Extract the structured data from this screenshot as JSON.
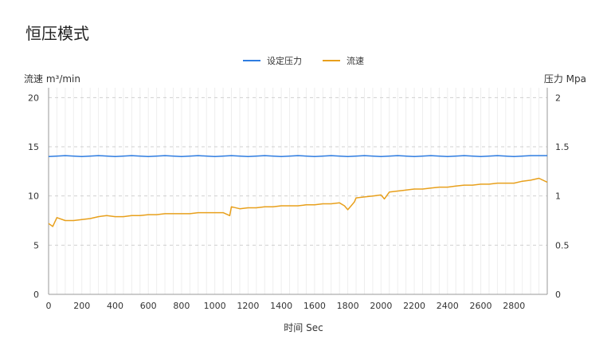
{
  "page": {
    "title": "恒压模式"
  },
  "colors": {
    "pressure": "#2f7de1",
    "flow": "#e8a01c",
    "grid_vertical": "#eeeeee",
    "grid_dashed": "#d0d0d0",
    "axis": "#9a9a9a"
  },
  "chart_data": {
    "type": "line",
    "xlabel": "时间 Sec",
    "ylabel_left": "流速 m³/min",
    "ylabel_right": "压力 Mpa",
    "xlim": [
      0,
      3000
    ],
    "ylim_left": [
      0,
      21
    ],
    "ylim_right": [
      0,
      2.1
    ],
    "x_ticks": [
      0,
      200,
      400,
      600,
      800,
      1000,
      1200,
      1400,
      1600,
      1800,
      2000,
      2200,
      2400,
      2600,
      2800
    ],
    "x_tick_labels": [
      "0",
      "200",
      "400",
      "600",
      "800",
      "1000",
      "1200",
      "1400",
      "1600",
      "1800",
      "2000",
      "2200",
      "2400",
      "2600",
      "2800"
    ],
    "y_left_ticks": [
      0,
      5,
      10,
      15,
      20
    ],
    "y_left_tick_labels": [
      "0",
      "5",
      "10",
      "15",
      "20"
    ],
    "y_right_ticks": [
      0,
      0.5,
      1,
      1.5,
      2
    ],
    "y_right_tick_labels": [
      "0",
      "0.5",
      "1",
      "1.5",
      "2"
    ],
    "grid": true,
    "legend_position": "top-center",
    "series": [
      {
        "name": "设定压力",
        "axis": "right",
        "color": "#2f7de1",
        "x": [
          0,
          100,
          200,
          300,
          400,
          500,
          600,
          700,
          800,
          900,
          1000,
          1100,
          1200,
          1300,
          1400,
          1500,
          1600,
          1700,
          1800,
          1900,
          2000,
          2100,
          2200,
          2300,
          2400,
          2500,
          2600,
          2700,
          2800,
          2900,
          3000
        ],
        "y": [
          1.4,
          1.41,
          1.4,
          1.41,
          1.4,
          1.41,
          1.4,
          1.41,
          1.4,
          1.41,
          1.4,
          1.41,
          1.4,
          1.41,
          1.4,
          1.41,
          1.4,
          1.41,
          1.4,
          1.41,
          1.4,
          1.41,
          1.4,
          1.41,
          1.4,
          1.41,
          1.4,
          1.41,
          1.4,
          1.41,
          1.41
        ]
      },
      {
        "name": "流速",
        "axis": "left",
        "color": "#e8a01c",
        "x": [
          0,
          25,
          50,
          100,
          150,
          200,
          250,
          300,
          350,
          400,
          450,
          500,
          550,
          600,
          650,
          700,
          750,
          800,
          850,
          900,
          950,
          1000,
          1050,
          1090,
          1100,
          1150,
          1200,
          1250,
          1300,
          1350,
          1400,
          1450,
          1500,
          1550,
          1600,
          1650,
          1700,
          1750,
          1780,
          1800,
          1820,
          1840,
          1850,
          1900,
          1950,
          2000,
          2020,
          2050,
          2100,
          2150,
          2200,
          2250,
          2300,
          2350,
          2400,
          2450,
          2500,
          2550,
          2600,
          2650,
          2700,
          2750,
          2800,
          2850,
          2900,
          2950,
          3000
        ],
        "y": [
          7.2,
          6.9,
          7.8,
          7.5,
          7.5,
          7.6,
          7.7,
          7.9,
          8.0,
          7.9,
          7.9,
          8.0,
          8.0,
          8.1,
          8.1,
          8.2,
          8.2,
          8.2,
          8.2,
          8.3,
          8.3,
          8.3,
          8.3,
          8.0,
          8.9,
          8.7,
          8.8,
          8.8,
          8.9,
          8.9,
          9.0,
          9.0,
          9.0,
          9.1,
          9.1,
          9.2,
          9.2,
          9.3,
          9.0,
          8.6,
          9.0,
          9.4,
          9.8,
          9.9,
          10.0,
          10.1,
          9.7,
          10.4,
          10.5,
          10.6,
          10.7,
          10.7,
          10.8,
          10.9,
          10.9,
          11.0,
          11.1,
          11.1,
          11.2,
          11.2,
          11.3,
          11.3,
          11.3,
          11.5,
          11.6,
          11.8,
          11.4
        ]
      }
    ]
  }
}
